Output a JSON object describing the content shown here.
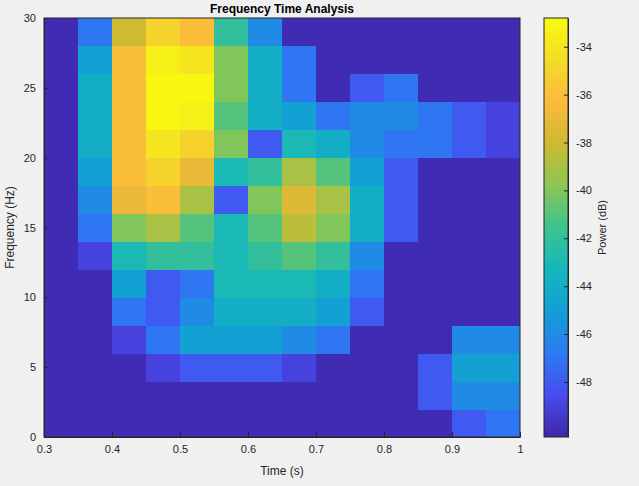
{
  "chart_data": {
    "type": "heatmap",
    "title": "Frequency Time Analysis",
    "x_label": "Time (s)",
    "y_label": "Frequency (Hz)",
    "xlim": [
      0.3,
      1
    ],
    "ylim": [
      0,
      30
    ],
    "xticks": [
      0.3,
      0.4,
      0.5,
      0.6,
      0.7,
      0.8,
      0.9,
      1
    ],
    "yticks": [
      0,
      5,
      10,
      15,
      20,
      25,
      30
    ],
    "x_bins": [
      0.3,
      0.35,
      0.4,
      0.45,
      0.5,
      0.55,
      0.6,
      0.65,
      0.7,
      0.75,
      0.8,
      0.85,
      0.9,
      0.95,
      1.0
    ],
    "y_bins": [
      0,
      2,
      4,
      6,
      8,
      10,
      12,
      14,
      16,
      18,
      20,
      22,
      24,
      26,
      28,
      30
    ],
    "z": [
      [
        -50,
        -50,
        -50,
        -50,
        -50,
        -50,
        -50,
        -50,
        -50,
        -50,
        -50,
        -50,
        -48,
        -47
      ],
      [
        -50,
        -50,
        -50,
        -50,
        -50,
        -50,
        -50,
        -50,
        -50,
        -50,
        -50,
        -48,
        -46,
        -46
      ],
      [
        -50,
        -50,
        -50,
        -49,
        -48,
        -48,
        -48,
        -49,
        -50,
        -50,
        -50,
        -48,
        -45,
        -45
      ],
      [
        -50,
        -50,
        -49,
        -47,
        -45,
        -45,
        -45,
        -46,
        -47,
        -50,
        -50,
        -50,
        -46,
        -46
      ],
      [
        -50,
        -50,
        -47,
        -48,
        -46,
        -44,
        -44,
        -44,
        -45,
        -48,
        -50,
        -50,
        -50,
        -50
      ],
      [
        -50,
        -50,
        -45,
        -48,
        -47,
        -43,
        -43,
        -43,
        -44,
        -47,
        -50,
        -50,
        -50,
        -50
      ],
      [
        -50,
        -49,
        -43,
        -42,
        -42,
        -43,
        -42,
        -41,
        -42,
        -46,
        -50,
        -50,
        -50,
        -50
      ],
      [
        -50,
        -47,
        -40,
        -39,
        -41,
        -43,
        -41,
        -38.5,
        -40,
        -44,
        -48,
        -50,
        -50,
        -50
      ],
      [
        -50,
        -46,
        -37,
        -36,
        -39,
        -48,
        -40,
        -37.5,
        -39,
        -44,
        -48,
        -50,
        -50,
        -50
      ],
      [
        -50,
        -45,
        -36,
        -35,
        -37,
        -43,
        -42,
        -39,
        -41,
        -45,
        -48,
        -50,
        -50,
        -50
      ],
      [
        -50,
        -44,
        -36,
        -34,
        -35,
        -40,
        -48,
        -43,
        -44,
        -46,
        -47,
        -47,
        -48,
        -49
      ],
      [
        -50,
        -44,
        -36,
        -33,
        -33.5,
        -41,
        -44,
        -45,
        -47,
        -46,
        -46,
        -47,
        -48,
        -49
      ],
      [
        -50,
        -44,
        -36,
        -33,
        -33,
        -40,
        -44,
        -47,
        -50,
        -48,
        -47,
        -50,
        -50,
        -50
      ],
      [
        -50,
        -45,
        -36,
        -33.5,
        -34,
        -40,
        -44,
        -47,
        -50,
        -50,
        -50,
        -50,
        -50,
        -50
      ],
      [
        -50,
        -47,
        -38,
        -35,
        -36,
        -42,
        -46,
        -50,
        -50,
        -50,
        -50,
        -50,
        -50,
        -50
      ]
    ],
    "color_label": "Power (dB)",
    "color_range": [
      -50.3,
      -32.8
    ],
    "color_ticks": [
      -48,
      -46,
      -44,
      -42,
      -40,
      -38,
      -36,
      -34
    ]
  }
}
